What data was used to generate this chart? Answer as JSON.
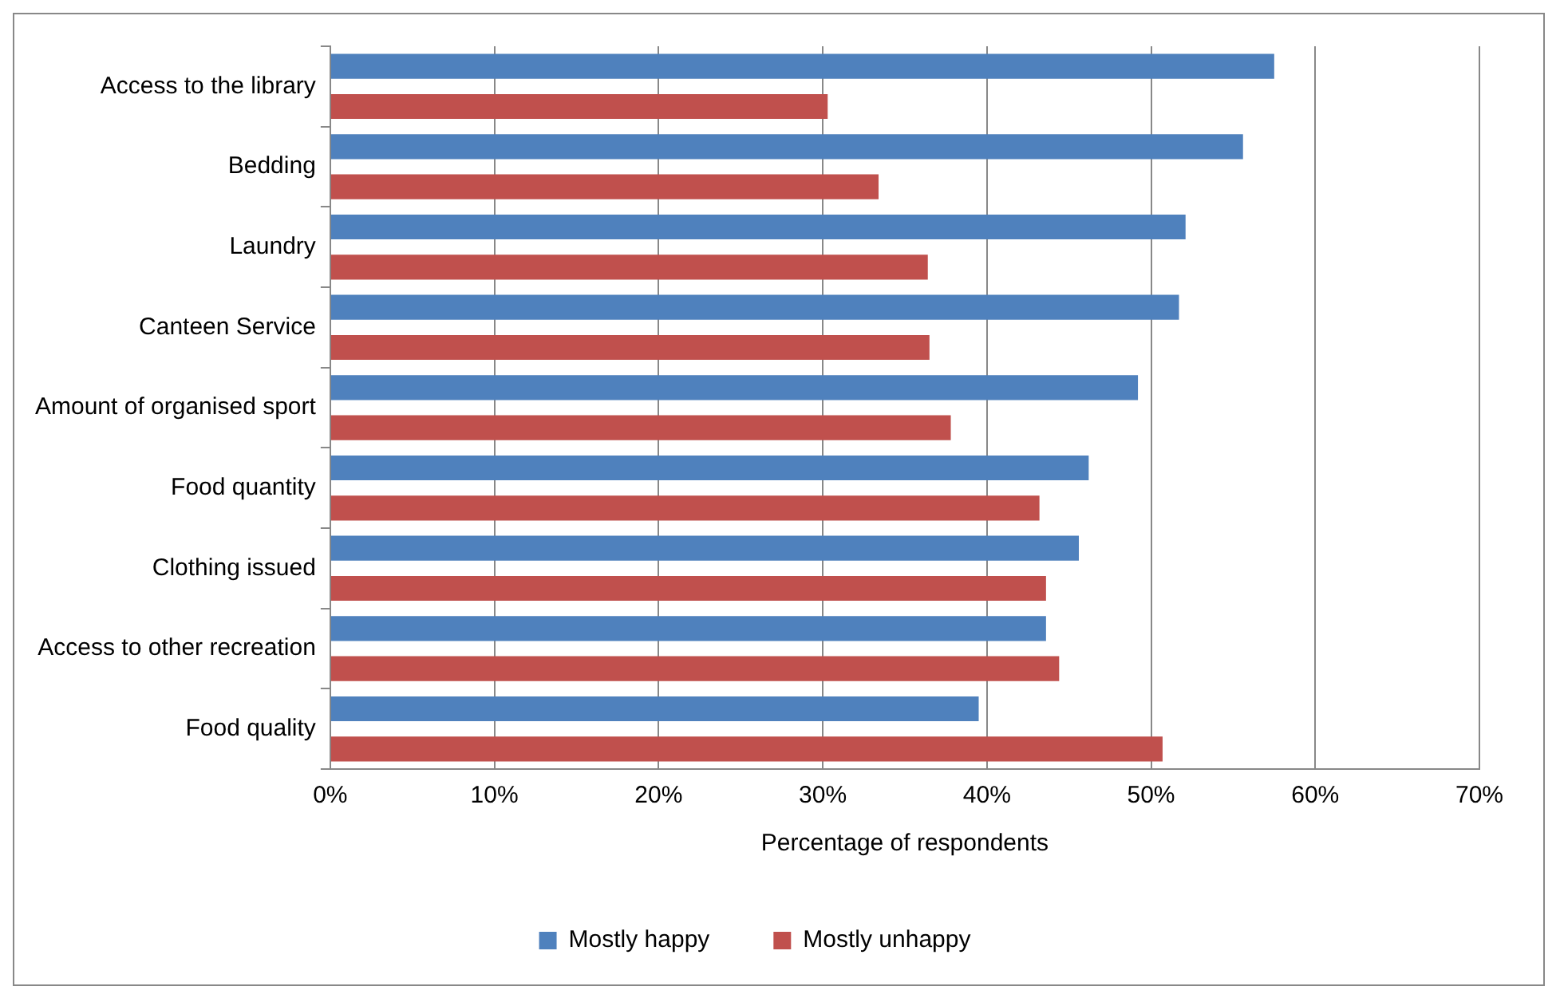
{
  "chart_data": {
    "type": "bar",
    "orientation": "horizontal",
    "xlabel": "Percentage of respondents",
    "categories": [
      "Access to the library",
      "Bedding",
      "Laundry",
      "Canteen Service",
      "Amount of organised sport",
      "Food quantity",
      "Clothing issued",
      "Access to other recreation",
      "Food quality"
    ],
    "series": [
      {
        "name": "Mostly happy",
        "color": "#4f81bd",
        "values": [
          57.5,
          55.6,
          52.1,
          51.7,
          49.2,
          46.2,
          45.6,
          43.6,
          39.5
        ]
      },
      {
        "name": "Mostly unhappy",
        "color": "#c0504d",
        "values": [
          30.3,
          33.4,
          36.4,
          36.5,
          37.8,
          43.2,
          43.6,
          44.4,
          50.7
        ]
      }
    ],
    "xlim": [
      0,
      70
    ],
    "xticks": [
      {
        "value": 0,
        "label": "0%"
      },
      {
        "value": 10,
        "label": "10%"
      },
      {
        "value": 20,
        "label": "20%"
      },
      {
        "value": 30,
        "label": "30%"
      },
      {
        "value": 40,
        "label": "40%"
      },
      {
        "value": 50,
        "label": "50%"
      },
      {
        "value": 60,
        "label": "60%"
      },
      {
        "value": 70,
        "label": "70%"
      }
    ],
    "grid": "x",
    "legend": "bottom"
  }
}
